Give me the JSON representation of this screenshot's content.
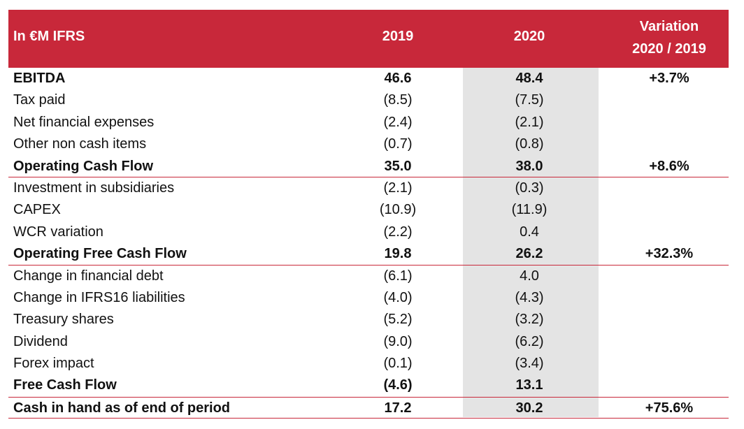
{
  "header": {
    "label": "In €M IFRS",
    "col_2019": "2019",
    "col_2020": "2020",
    "col_var_line1": "Variation",
    "col_var_line2": "2020 / 2019"
  },
  "rows": [
    {
      "label": "EBITDA",
      "v2019": "46.6",
      "v2020": "48.4",
      "var": "+3.7%"
    },
    {
      "label": "Tax paid",
      "v2019": "(8.5)",
      "v2020": "(7.5)",
      "var": ""
    },
    {
      "label": "Net financial expenses",
      "v2019": "(2.4)",
      "v2020": "(2.1)",
      "var": ""
    },
    {
      "label": "Other non cash items",
      "v2019": "(0.7)",
      "v2020": "(0.8)",
      "var": ""
    },
    {
      "label": "Operating Cash Flow",
      "v2019": "35.0",
      "v2020": "38.0",
      "var": "+8.6%"
    },
    {
      "label": "Investment in subsidiaries",
      "v2019": "(2.1)",
      "v2020": "(0.3)",
      "var": ""
    },
    {
      "label": "CAPEX",
      "v2019": "(10.9)",
      "v2020": "(11.9)",
      "var": ""
    },
    {
      "label": "WCR variation",
      "v2019": "(2.2)",
      "v2020": "0.4",
      "var": ""
    },
    {
      "label": "Operating Free Cash Flow",
      "v2019": "19.8",
      "v2020": "26.2",
      "var": "+32.3%"
    },
    {
      "label": "Change in financial debt",
      "v2019": "(6.1)",
      "v2020": "4.0",
      "var": ""
    },
    {
      "label": "Change in IFRS16 liabilities",
      "v2019": "(4.0)",
      "v2020": "(4.3)",
      "var": ""
    },
    {
      "label": "Treasury shares",
      "v2019": "(5.2)",
      "v2020": "(3.2)",
      "var": ""
    },
    {
      "label": "Dividend",
      "v2019": "(9.0)",
      "v2020": "(6.2)",
      "var": ""
    },
    {
      "label": "Forex impact",
      "v2019": "(0.1)",
      "v2020": "(3.4)",
      "var": ""
    },
    {
      "label": "Free Cash Flow",
      "v2019": "(4.6)",
      "v2020": "13.1",
      "var": ""
    },
    {
      "label": "Cash in hand as of end of period",
      "v2019": "17.2",
      "v2020": "30.2",
      "var": "+75.6%"
    }
  ],
  "colors": {
    "header_bg": "#c8283a",
    "highlight_col": "#e4e4e4",
    "rule": "#c8283a"
  }
}
